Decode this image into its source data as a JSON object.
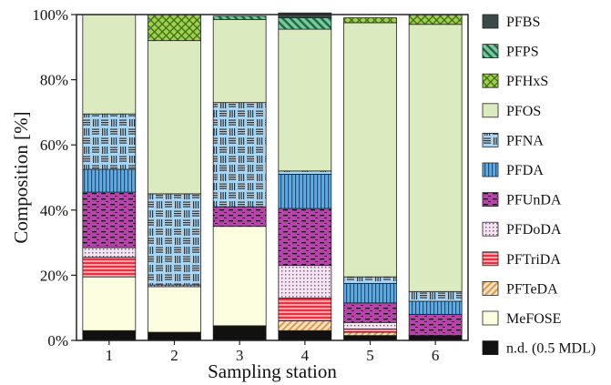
{
  "chart_data": {
    "type": "bar",
    "stacked": true,
    "xlabel": "Sampling station",
    "ylabel": "Composition [%]",
    "ylim": [
      0,
      100
    ],
    "yticks": [
      0,
      20,
      40,
      60,
      80,
      100
    ],
    "ytick_labels": [
      "0%",
      "20%",
      "40%",
      "60%",
      "80%",
      "100%"
    ],
    "categories": [
      "1",
      "2",
      "3",
      "4",
      "5",
      "6"
    ],
    "legend_position": "right",
    "series": [
      {
        "name": "n.d. (0.5 MDL)",
        "color": "#111111",
        "pattern": "solid",
        "values": [
          3,
          2.5,
          4.5,
          3,
          1.5,
          1.5
        ]
      },
      {
        "name": "MeFOSE",
        "color": "#fdfde0",
        "pattern": "none",
        "values": [
          16.5,
          14,
          30.5,
          0,
          0,
          0
        ]
      },
      {
        "name": "PFTeDA",
        "color": "#f7d3a8",
        "pattern": "diagonal-orange",
        "values": [
          0,
          0,
          0,
          3,
          1,
          0
        ]
      },
      {
        "name": "PFTriDA",
        "color": "#f36f7a",
        "pattern": "horizontal-red",
        "values": [
          6,
          0,
          0,
          7,
          1,
          0
        ]
      },
      {
        "name": "PFDoDA",
        "color": "#f2e2f2",
        "pattern": "dots",
        "values": [
          3,
          0.5,
          0,
          10,
          2,
          0
        ]
      },
      {
        "name": "PFUnDA",
        "color": "#b545a8",
        "pattern": "dashes",
        "values": [
          17,
          0,
          6,
          17.5,
          6,
          6.5
        ]
      },
      {
        "name": "PFDA",
        "color": "#4da1d8",
        "pattern": "vertical",
        "values": [
          7,
          0,
          0,
          10.5,
          6,
          4
        ]
      },
      {
        "name": "PFNA",
        "color": "#a8d5f2",
        "pattern": "blocks",
        "values": [
          17,
          28,
          32,
          1,
          2,
          3
        ]
      },
      {
        "name": "PFOS",
        "color": "#dcebbf",
        "pattern": "none",
        "values": [
          30.5,
          47,
          25.5,
          43.5,
          78,
          82
        ]
      },
      {
        "name": "PFHxS",
        "color": "#8dc63f",
        "pattern": "crosshatch",
        "values": [
          0,
          8,
          0,
          0,
          1.5,
          3
        ]
      },
      {
        "name": "PFPS",
        "color": "#4aa876",
        "pattern": "diagonal-green",
        "values": [
          0,
          0,
          1,
          3.5,
          0,
          0
        ]
      },
      {
        "name": "PFBS",
        "color": "#3a4a48",
        "pattern": "solid",
        "values": [
          0,
          0,
          0,
          1.5,
          0,
          0
        ]
      }
    ]
  }
}
